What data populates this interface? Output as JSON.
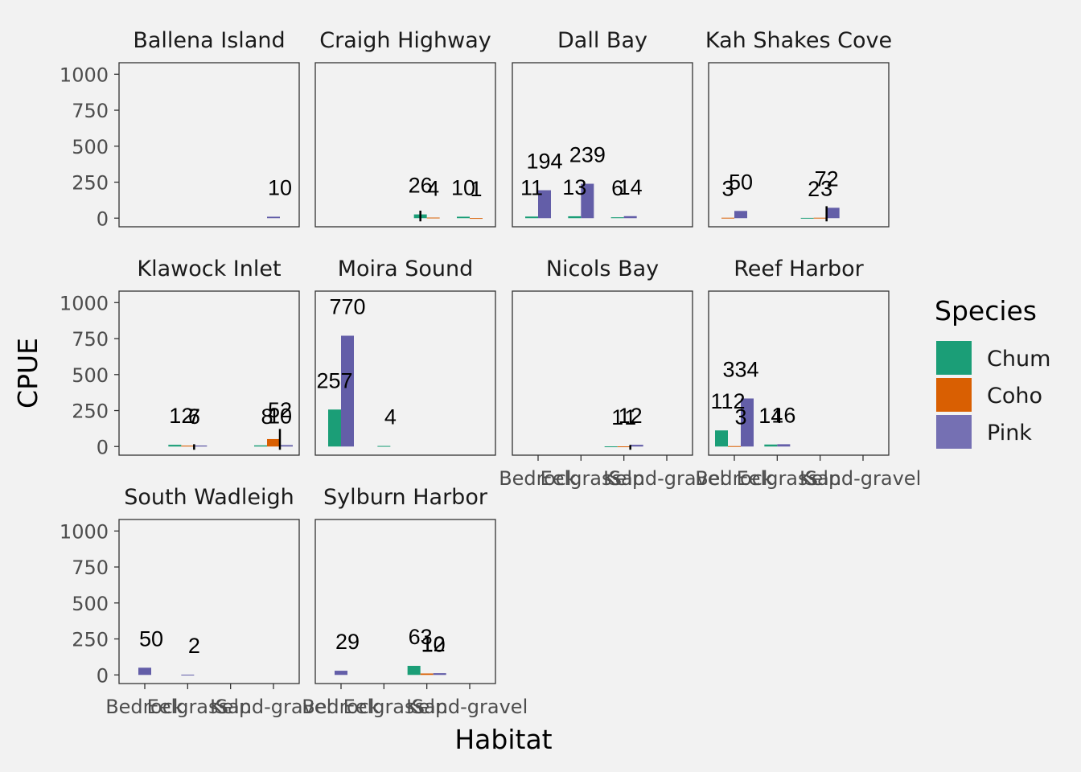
{
  "chart_data": {
    "type": "bar",
    "facet_by": "Site",
    "xlabel": "Habitat",
    "ylabel": "CPUE",
    "categories": [
      "Bedrock",
      "Eelgrass",
      "Kelp",
      "Sand-gravel"
    ],
    "yticks": [
      0,
      250,
      500,
      750,
      1000
    ],
    "ytick_labels": [
      "0",
      "250",
      "500",
      "750",
      "1000"
    ],
    "ylim": [
      -60,
      1080
    ],
    "legend": {
      "title": "Species",
      "placement": "right",
      "items": [
        {
          "name": "Chum",
          "color": "#1b9e77"
        },
        {
          "name": "Coho",
          "color": "#d95f02"
        },
        {
          "name": "Pink",
          "color": "#7570b3"
        }
      ]
    },
    "colors": {
      "Chum": "#1b9e77",
      "Coho": "#d95f02",
      "Pink": "#635ea8",
      "background": "#f2f2f2"
    },
    "facets": [
      {
        "site": "Ballena Island",
        "bars": [
          {
            "habitat": "Sand-gravel",
            "species": [
              "Pink"
            ],
            "values": [
              10
            ],
            "label": "10"
          }
        ]
      },
      {
        "site": "Craigh Highway",
        "bars": [
          {
            "habitat": "Kelp",
            "species": [
              "Chum",
              "Coho"
            ],
            "values": [
              26,
              4
            ],
            "label": "26",
            "sd": 26
          },
          {
            "habitat": "Kelp",
            "species": [
              "Coho"
            ],
            "values": [
              4
            ],
            "label": "4"
          },
          {
            "habitat": "Sand-gravel",
            "species": [
              "Chum",
              "Coho"
            ],
            "values": [
              10,
              1
            ],
            "label": "10"
          },
          {
            "habitat": "Sand-gravel",
            "species": [
              "Coho"
            ],
            "values": [
              1
            ],
            "label": "1"
          }
        ]
      },
      {
        "site": "Dall Bay",
        "bars": [
          {
            "habitat": "Bedrock",
            "species": [
              "Chum",
              "Pink"
            ],
            "values": [
              11,
              194
            ],
            "label": "11"
          },
          {
            "habitat": "Bedrock",
            "species": [
              "Pink"
            ],
            "values": [
              194
            ],
            "label": "194"
          },
          {
            "habitat": "Eelgrass",
            "species": [
              "Chum",
              "Pink"
            ],
            "values": [
              13,
              239
            ],
            "label": "13"
          },
          {
            "habitat": "Eelgrass",
            "species": [
              "Pink"
            ],
            "values": [
              239
            ],
            "label": "239"
          },
          {
            "habitat": "Kelp",
            "species": [
              "Chum",
              "Pink"
            ],
            "values": [
              6,
              14
            ],
            "label": "6"
          },
          {
            "habitat": "Kelp",
            "species": [
              "Pink"
            ],
            "values": [
              14
            ],
            "label": "14"
          }
        ]
      },
      {
        "site": "Kah Shakes Cove",
        "bars": [
          {
            "habitat": "Bedrock",
            "species": [
              "Coho",
              "Pink"
            ],
            "values": [
              3,
              50
            ],
            "label": "3"
          },
          {
            "habitat": "Bedrock",
            "species": [
              "Pink"
            ],
            "values": [
              50
            ],
            "label": "50"
          },
          {
            "habitat": "Kelp",
            "species": [
              "Chum",
              "Coho",
              "Pink"
            ],
            "values": [
              2,
              3,
              72
            ],
            "label": "2"
          },
          {
            "habitat": "Kelp",
            "species": [
              "Coho"
            ],
            "values": [
              3
            ],
            "label": "3",
            "sd": 80
          },
          {
            "habitat": "Kelp",
            "species": [
              "Pink"
            ],
            "values": [
              72
            ],
            "label": "72"
          }
        ]
      },
      {
        "site": "Klawock Inlet",
        "bars": [
          {
            "habitat": "Eelgrass",
            "species": [
              "Chum",
              "Coho",
              "Pink"
            ],
            "values": [
              12,
              6,
              7
            ],
            "label": "12"
          },
          {
            "habitat": "Eelgrass",
            "species": [
              "Coho"
            ],
            "values": [
              6
            ],
            "label": "6",
            "sd": 10
          },
          {
            "habitat": "Eelgrass",
            "species": [
              "Pink"
            ],
            "values": [
              7
            ],
            "label": "7"
          },
          {
            "habitat": "Sand-gravel",
            "species": [
              "Chum",
              "Coho",
              "Pink"
            ],
            "values": [
              8,
              52,
              10
            ],
            "label": "8"
          },
          {
            "habitat": "Sand-gravel",
            "species": [
              "Coho"
            ],
            "values": [
              52
            ],
            "label": "52",
            "sd": 70
          },
          {
            "habitat": "Sand-gravel",
            "species": [
              "Pink"
            ],
            "values": [
              10
            ],
            "label": "10"
          }
        ]
      },
      {
        "site": "Moira Sound",
        "bars": [
          {
            "habitat": "Bedrock",
            "species": [
              "Chum",
              "Pink"
            ],
            "values": [
              257,
              770
            ],
            "label": "257"
          },
          {
            "habitat": "Bedrock",
            "species": [
              "Pink"
            ],
            "values": [
              770
            ],
            "label": "770"
          },
          {
            "habitat": "Eelgrass",
            "species": [
              "Chum"
            ],
            "values": [
              4
            ],
            "label": "4"
          }
        ]
      },
      {
        "site": "Nicols Bay",
        "bars": [
          {
            "habitat": "Kelp",
            "species": [
              "Chum",
              "Coho",
              "Pink"
            ],
            "values": [
              1,
              1,
              12
            ],
            "label": "1"
          },
          {
            "habitat": "Kelp",
            "species": [
              "Coho"
            ],
            "values": [
              1
            ],
            "label": "1",
            "sd": 10
          },
          {
            "habitat": "Kelp",
            "species": [
              "Pink"
            ],
            "values": [
              12
            ],
            "label": "12"
          }
        ]
      },
      {
        "site": "Reef Harbor",
        "bars": [
          {
            "habitat": "Bedrock",
            "species": [
              "Chum",
              "Coho",
              "Pink"
            ],
            "values": [
              112,
              3,
              334
            ],
            "label": "112"
          },
          {
            "habitat": "Bedrock",
            "species": [
              "Coho"
            ],
            "values": [
              3
            ],
            "label": "3"
          },
          {
            "habitat": "Bedrock",
            "species": [
              "Pink"
            ],
            "values": [
              334
            ],
            "label": "334"
          },
          {
            "habitat": "Eelgrass",
            "species": [
              "Chum",
              "Pink"
            ],
            "values": [
              14,
              16
            ],
            "label": "14"
          },
          {
            "habitat": "Eelgrass",
            "species": [
              "Pink"
            ],
            "values": [
              16
            ],
            "label": "16"
          }
        ]
      },
      {
        "site": "South Wadleigh",
        "bars": [
          {
            "habitat": "Bedrock",
            "species": [
              "Pink"
            ],
            "values": [
              50
            ],
            "label": "50"
          },
          {
            "habitat": "Eelgrass",
            "species": [
              "Pink"
            ],
            "values": [
              2
            ],
            "label": "2"
          }
        ]
      },
      {
        "site": "Sylburn Harbor",
        "bars": [
          {
            "habitat": "Bedrock",
            "species": [
              "Pink"
            ],
            "values": [
              29
            ],
            "label": "29"
          },
          {
            "habitat": "Kelp",
            "species": [
              "Chum",
              "Coho",
              "Pink"
            ],
            "values": [
              63,
              10,
              12
            ],
            "label": "63"
          },
          {
            "habitat": "Kelp",
            "species": [
              "Coho"
            ],
            "values": [
              10
            ],
            "label": "10"
          },
          {
            "habitat": "Kelp",
            "species": [
              "Pink"
            ],
            "values": [
              12
            ],
            "label": "12"
          }
        ]
      }
    ]
  }
}
